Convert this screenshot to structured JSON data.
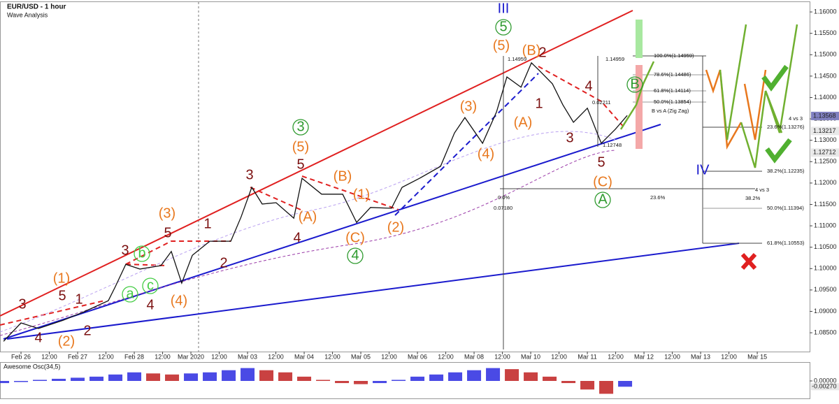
{
  "chart_data": {
    "type": "line",
    "title": "EUR/USD - 1 hour",
    "subtitle": "Wave Analysis",
    "color": "#111111",
    "xlim": [
      -8.9,
      334.2
    ],
    "ylim": [
      1.0806,
      1.1623
    ],
    "xticks": [
      {
        "value": 0,
        "label": "Feb 26"
      },
      {
        "value": 12,
        "label": "12:00"
      },
      {
        "value": 24,
        "label": "Feb 27"
      },
      {
        "value": 36,
        "label": "12:00"
      },
      {
        "value": 48,
        "label": "Feb 28"
      },
      {
        "value": 60,
        "label": "12:00"
      },
      {
        "value": 72,
        "label": "Mar 2020"
      },
      {
        "value": 84,
        "label": "12:00"
      },
      {
        "value": 96,
        "label": "Mar 03"
      },
      {
        "value": 108,
        "label": "12:00"
      },
      {
        "value": 120,
        "label": "Mar 04"
      },
      {
        "value": 132,
        "label": "12:00"
      },
      {
        "value": 144,
        "label": "Mar 05"
      },
      {
        "value": 156,
        "label": "12:00"
      },
      {
        "value": 168,
        "label": "Mar 06"
      },
      {
        "value": 180,
        "label": "12:00"
      },
      {
        "value": 192,
        "label": "Mar 08"
      },
      {
        "value": 204,
        "label": "12:00"
      },
      {
        "value": 216,
        "label": "Mar 10"
      },
      {
        "value": 228,
        "label": "12:00"
      },
      {
        "value": 240,
        "label": "Mar 11"
      },
      {
        "value": 252,
        "label": "12:00"
      },
      {
        "value": 264,
        "label": "Mar 12"
      },
      {
        "value": 276,
        "label": "12:00"
      },
      {
        "value": 288,
        "label": "Mar 13"
      },
      {
        "value": 300,
        "label": "12:00"
      },
      {
        "value": 312,
        "label": "Mar 15"
      }
    ],
    "yticks": [
      {
        "value": 1.085,
        "label": "1.08500"
      },
      {
        "value": 1.09,
        "label": "1.09000"
      },
      {
        "value": 1.095,
        "label": "1.09500"
      },
      {
        "value": 1.1,
        "label": "1.10000"
      },
      {
        "value": 1.105,
        "label": "1.10500"
      },
      {
        "value": 1.11,
        "label": "1.11000"
      },
      {
        "value": 1.115,
        "label": "1.11500"
      },
      {
        "value": 1.12,
        "label": "1.12000"
      },
      {
        "value": 1.125,
        "label": "1.12500"
      },
      {
        "value": 1.13,
        "label": "1.13000"
      },
      {
        "value": 1.135,
        "label": "1.13500"
      },
      {
        "value": 1.14,
        "label": "1.14000"
      },
      {
        "value": 1.145,
        "label": "1.14500"
      },
      {
        "value": 1.15,
        "label": "1.15000"
      },
      {
        "value": 1.155,
        "label": "1.15500"
      },
      {
        "value": 1.16,
        "label": "1.16000"
      }
    ],
    "price_markers": [
      {
        "value": 1.13568,
        "label": "1.13568",
        "color": "#8080c0"
      },
      {
        "value": 1.13217,
        "label": "1.13217",
        "color": "#e8e8e8"
      },
      {
        "value": 1.12712,
        "label": "1.12712",
        "color": "#e8e8e8"
      }
    ],
    "x": [
      -7.4,
      0,
      7.4,
      17.8,
      26.7,
      37,
      40,
      44.4,
      50.4,
      59.3,
      63.7,
      68.1,
      72.6,
      80,
      88.9,
      93.3,
      97.8,
      102.2,
      108.1,
      115.6,
      119.1,
      127.4,
      136.3,
      142.2,
      148.1,
      157,
      161.5,
      168.9,
      177.8,
      183.7,
      188.1,
      195.6,
      201.5,
      205.9,
      211.9,
      216.3,
      219.3,
      225.2,
      229.6,
      234.1,
      240,
      245.9,
      251.9,
      256.9
    ],
    "values": [
      1.083,
      1.0873,
      1.086,
      1.0879,
      1.0899,
      1.0925,
      1.0958,
      1.101,
      1.0999,
      1.1007,
      1.104,
      1.0966,
      1.1031,
      1.1064,
      1.1064,
      1.1121,
      1.119,
      1.1151,
      1.1154,
      1.1118,
      1.1211,
      1.1174,
      1.1174,
      1.1108,
      1.1143,
      1.1141,
      1.119,
      1.1211,
      1.1239,
      1.1317,
      1.1353,
      1.1293,
      1.1366,
      1.1448,
      1.1424,
      1.1481,
      1.1465,
      1.1432,
      1.1383,
      1.1342,
      1.1375,
      1.1293,
      1.1326,
      1.1358
    ],
    "annotations": [
      {
        "text": "III",
        "color": "#1a1acd"
      },
      {
        "text": "5",
        "color": "#2e9a2e"
      },
      {
        "text": "(5)",
        "color": "#e8781e"
      },
      {
        "text": "(B)",
        "color": "#e8781e"
      },
      {
        "text": "2",
        "color": "#7b1010"
      },
      {
        "text": "4",
        "color": "#7b1010"
      },
      {
        "text": "1",
        "color": "#7b1010"
      },
      {
        "text": "(A)",
        "color": "#e8781e"
      },
      {
        "text": "3",
        "color": "#7b1010"
      },
      {
        "text": "5",
        "color": "#7b1010"
      },
      {
        "text": "(C)",
        "color": "#e8781e"
      },
      {
        "text": "A",
        "color": "#2e9a2e"
      },
      {
        "text": "B",
        "color": "#2e9a2e"
      },
      {
        "text": "(3)",
        "color": "#e8781e"
      },
      {
        "text": "(4)",
        "color": "#e8781e"
      },
      {
        "text": "3",
        "color": "#2e9a2e"
      },
      {
        "text": "(5)",
        "color": "#e8781e"
      },
      {
        "text": "5",
        "color": "#7b1010"
      },
      {
        "text": "(B)",
        "color": "#e8781e"
      },
      {
        "text": "(1)",
        "color": "#e8781e"
      },
      {
        "text": "(A)",
        "color": "#e8781e"
      },
      {
        "text": "4",
        "color": "#7b1010"
      },
      {
        "text": "(C)",
        "color": "#e8781e"
      },
      {
        "text": "4",
        "color": "#2e9a2e"
      },
      {
        "text": "(2)",
        "color": "#e8781e"
      },
      {
        "text": "3",
        "color": "#7b1010"
      },
      {
        "text": "(3)",
        "color": "#e8781e"
      },
      {
        "text": "5",
        "color": "#7b1010"
      },
      {
        "text": "1",
        "color": "#7b1010"
      },
      {
        "text": "2",
        "color": "#7b1010"
      },
      {
        "text": "3",
        "color": "#7b1010"
      },
      {
        "text": "b",
        "color": "#44cc44"
      },
      {
        "text": "a",
        "color": "#44cc44"
      },
      {
        "text": "c",
        "color": "#44cc44"
      },
      {
        "text": "4",
        "color": "#7b1010"
      },
      {
        "text": "(4)",
        "color": "#e8781e"
      },
      {
        "text": "(1)",
        "color": "#e8781e"
      },
      {
        "text": "5",
        "color": "#7b1010"
      },
      {
        "text": "1",
        "color": "#7b1010"
      },
      {
        "text": "3",
        "color": "#7b1010"
      },
      {
        "text": "4",
        "color": "#7b1010"
      },
      {
        "text": "(2)",
        "color": "#e8781e"
      },
      {
        "text": "2",
        "color": "#7b1010"
      },
      {
        "text": "IV",
        "color": "#1a1acd"
      }
    ],
    "fib_labels": [
      "100.0%(1.14959)",
      "78.6%(1.14486)",
      "61.8%(1.14114)",
      "50.0%(1.13854)",
      "B vs A (Zig Zag)",
      "1.14959",
      "1.14959",
      "0.02211",
      "1.12748",
      "0.0%",
      "0.07180",
      "23.6%",
      "4 vs 3",
      "38.2%",
      "4 vs 3",
      "23.6%(1.13276)",
      "38.2%(1.12235)",
      "50.0%(1.11394)",
      "61.8%(1.10553)"
    ],
    "oscillator": {
      "title": "Awesome Osc(34,5)",
      "ylim": [
        -0.0075,
        0.0075
      ],
      "yticks": [
        {
          "value": 0,
          "label": "0.00000"
        }
      ],
      "current": {
        "value": -0.0027,
        "label": "-0.00270"
      },
      "up_color": "#2a2ae0",
      "down_color": "#c02020",
      "x": [
        -8,
        0,
        8,
        16,
        24,
        32,
        40,
        48,
        56,
        64,
        72,
        80,
        88,
        96,
        104,
        112,
        120,
        128,
        136,
        144,
        152,
        160,
        168,
        176,
        184,
        192,
        200,
        208,
        216,
        224,
        232,
        240,
        248,
        256
      ],
      "values": [
        -0.001,
        -0.0005,
        0.0005,
        0.001,
        0.0015,
        0.002,
        0.003,
        0.004,
        0.0035,
        0.003,
        0.0035,
        0.004,
        0.005,
        0.006,
        0.005,
        0.004,
        0.002,
        0.0005,
        -0.001,
        -0.0015,
        -0.001,
        0.0005,
        0.002,
        0.003,
        0.004,
        0.005,
        0.006,
        0.0055,
        0.004,
        0.002,
        -0.001,
        -0.004,
        -0.006,
        -0.0027
      ]
    }
  }
}
